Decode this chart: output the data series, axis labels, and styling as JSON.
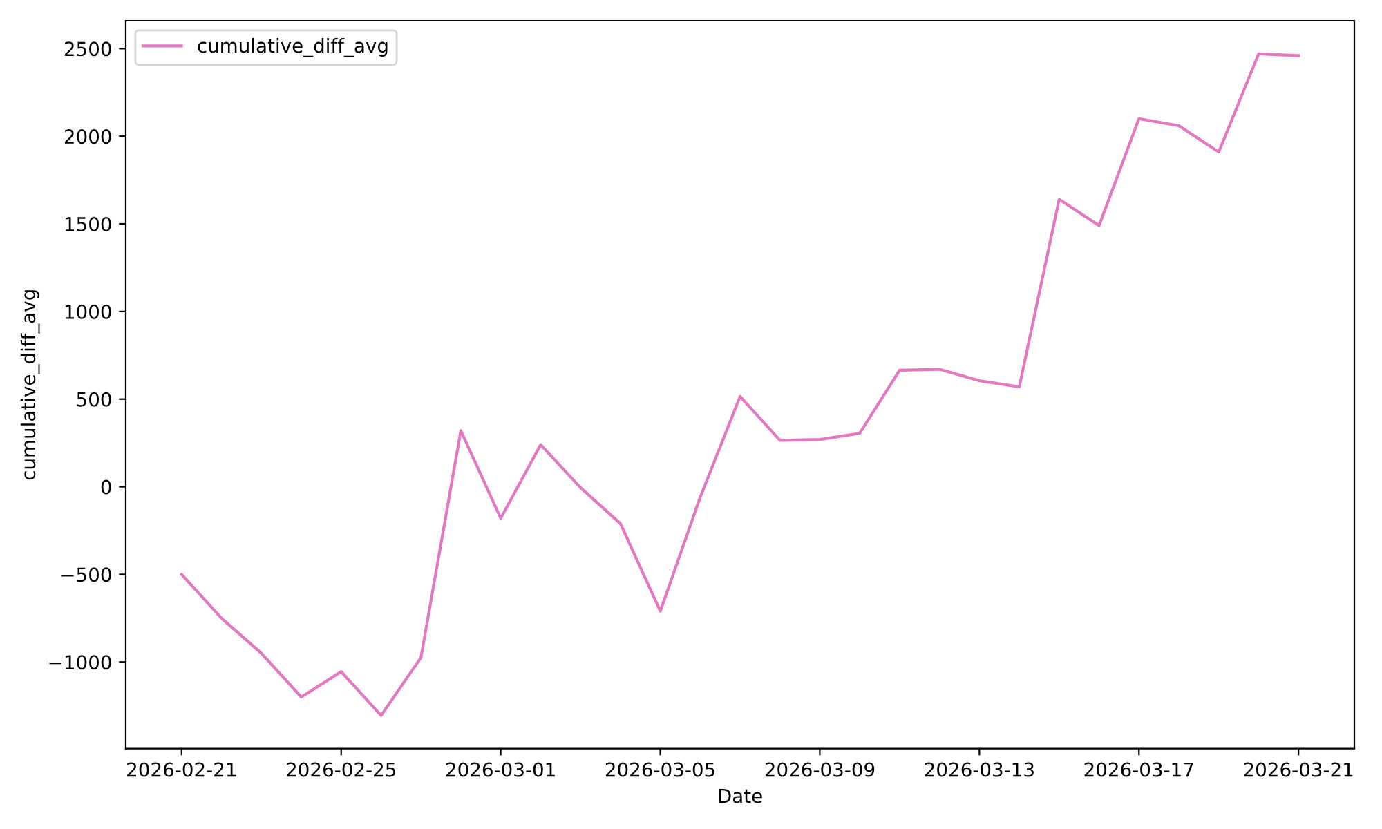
{
  "chart_data": {
    "type": "line",
    "xlabel": "Date",
    "ylabel": "cumulative_diff_avg",
    "x": [
      "2026-02-21",
      "2026-02-22",
      "2026-02-23",
      "2026-02-24",
      "2026-02-25",
      "2026-02-26",
      "2026-02-27",
      "2026-02-28",
      "2026-03-01",
      "2026-03-02",
      "2026-03-03",
      "2026-03-04",
      "2026-03-05",
      "2026-03-06",
      "2026-03-07",
      "2026-03-08",
      "2026-03-09",
      "2026-03-10",
      "2026-03-11",
      "2026-03-12",
      "2026-03-13",
      "2026-03-14",
      "2026-03-15",
      "2026-03-16",
      "2026-03-17",
      "2026-03-18",
      "2026-03-19",
      "2026-03-20",
      "2026-03-21"
    ],
    "series": [
      {
        "name": "cumulative_diff_avg",
        "color": "#e377c2",
        "values": [
          -500,
          -750,
          -950,
          -1200,
          -1055,
          -1305,
          -975,
          320,
          -180,
          240,
          -5,
          -210,
          -710,
          -60,
          515,
          265,
          270,
          305,
          665,
          670,
          605,
          570,
          1640,
          1490,
          2100,
          2060,
          1910,
          2470,
          2460
        ]
      }
    ],
    "xlim": [
      "2026-02-19T14:24",
      "2026-03-22T09:36"
    ],
    "xticks": [
      "2026-02-21",
      "2026-02-25",
      "2026-03-01",
      "2026-03-05",
      "2026-03-09",
      "2026-03-13",
      "2026-03-17",
      "2026-03-21"
    ],
    "ylim": [
      -1494,
      2659
    ],
    "yticks": [
      -1000,
      -500,
      0,
      500,
      1000,
      1500,
      2000,
      2500
    ],
    "grid": false,
    "legend": "top left",
    "line_style": "solid"
  }
}
